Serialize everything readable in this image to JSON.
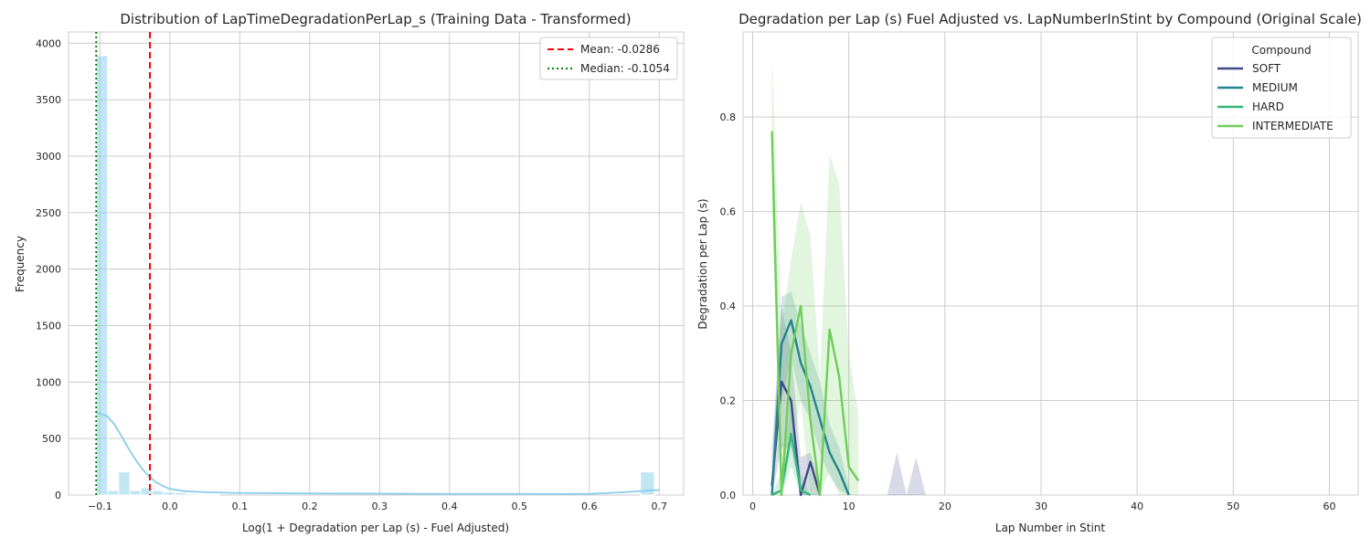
{
  "chart_data": [
    {
      "type": "bar",
      "title": "Distribution of LapTimeDegradationPerLap_s (Training Data - Transformed)",
      "xlabel": "Log(1 + Degradation per Lap (s) - Fuel Adjusted)",
      "ylabel": "Frequency",
      "xlim": [
        -0.145,
        0.735
      ],
      "ylim": [
        0,
        4100
      ],
      "xticks": [
        -0.1,
        0.0,
        0.1,
        0.2,
        0.3,
        0.4,
        0.5,
        0.6,
        0.7
      ],
      "xtick_labels": [
        "−0.1",
        "0.0",
        "0.1",
        "0.2",
        "0.3",
        "0.4",
        "0.5",
        "0.6",
        "0.7"
      ],
      "yticks": [
        0,
        500,
        1000,
        1500,
        2000,
        2500,
        3000,
        3500,
        4000
      ],
      "ytick_labels": [
        "0",
        "500",
        "1000",
        "1500",
        "2000",
        "2500",
        "3000",
        "3500",
        "4000"
      ],
      "grid": true,
      "legend_position": "top-right",
      "bar_color": "#87ceeb",
      "bins": [
        {
          "x0": -0.1054,
          "x1": -0.0894,
          "count": 3890
        },
        {
          "x0": -0.0894,
          "x1": -0.0734,
          "count": 40
        },
        {
          "x0": -0.0734,
          "x1": -0.0574,
          "count": 205
        },
        {
          "x0": -0.0574,
          "x1": -0.0414,
          "count": 40
        },
        {
          "x0": -0.0414,
          "x1": -0.0254,
          "count": 65
        },
        {
          "x0": -0.0254,
          "x1": -0.0094,
          "count": 40
        },
        {
          "x0": -0.0094,
          "x1": 0.0066,
          "count": 25
        },
        {
          "x0": 0.0066,
          "x1": 0.0226,
          "count": 22
        },
        {
          "x0": 0.0226,
          "x1": 0.0386,
          "count": 12
        },
        {
          "x0": 0.0386,
          "x1": 0.0546,
          "count": 8
        },
        {
          "x0": 0.0546,
          "x1": 0.0706,
          "count": 6
        },
        {
          "x0": 0.6731,
          "x1": 0.6931,
          "count": 205
        }
      ],
      "kde": {
        "color": "#87ceeb",
        "x": [
          -0.1054,
          -0.09,
          -0.08,
          -0.07,
          -0.06,
          -0.05,
          -0.04,
          -0.03,
          -0.02,
          -0.01,
          0.0,
          0.02,
          0.05,
          0.1,
          0.2,
          0.3,
          0.4,
          0.5,
          0.55,
          0.6,
          0.65,
          0.7
        ],
        "y": [
          730,
          700,
          630,
          530,
          420,
          320,
          235,
          165,
          115,
          80,
          55,
          35,
          25,
          18,
          14,
          12,
          10,
          10,
          9,
          10,
          25,
          45
        ]
      },
      "reference_lines": [
        {
          "label": "Mean: -0.0286",
          "value": -0.0286,
          "color": "#ff0000",
          "style": "dashed"
        },
        {
          "label": "Median: -0.1054",
          "value": -0.1054,
          "color": "#008000",
          "style": "dotted"
        }
      ]
    },
    {
      "type": "line",
      "title": "Degradation per Lap (s) Fuel Adjusted vs. LapNumberInStint by Compound (Original Scale)",
      "xlabel": "Lap Number in Stint",
      "ylabel": "Degradation per Lap (s)",
      "xlim": [
        -1,
        63
      ],
      "ylim": [
        0,
        0.98
      ],
      "xticks": [
        0,
        10,
        20,
        30,
        40,
        50,
        60
      ],
      "xtick_labels": [
        "0",
        "10",
        "20",
        "30",
        "40",
        "50",
        "60"
      ],
      "yticks": [
        0.0,
        0.2,
        0.4,
        0.6,
        0.8
      ],
      "ytick_labels": [
        "0.0",
        "0.2",
        "0.4",
        "0.6",
        "0.8"
      ],
      "grid": true,
      "legend_title": "Compound",
      "legend_position": "top-right",
      "series": [
        {
          "name": "SOFT",
          "color": "#3e4a89",
          "x": [
            2,
            3,
            4,
            5,
            6,
            7
          ],
          "y": [
            0.02,
            0.24,
            0.2,
            0.0,
            0.07,
            0.0
          ],
          "ci_upper": [
            0.1,
            0.4,
            0.3,
            0.08,
            0.09,
            0.02
          ],
          "ci_lower": [
            0.0,
            0.1,
            0.1,
            0.0,
            0.0,
            0.0
          ]
        },
        {
          "name": "MEDIUM",
          "color": "#26828e",
          "x": [
            2,
            3,
            4,
            5,
            6,
            7,
            8,
            9,
            10
          ],
          "y": [
            0.0,
            0.32,
            0.37,
            0.28,
            0.23,
            0.16,
            0.09,
            0.05,
            0.0
          ],
          "ci_upper": [
            0.05,
            0.42,
            0.43,
            0.36,
            0.3,
            0.24,
            0.15,
            0.1,
            0.02
          ],
          "ci_lower": [
            0.0,
            0.2,
            0.29,
            0.2,
            0.16,
            0.09,
            0.04,
            0.01,
            0.0
          ]
        },
        {
          "name": "HARD",
          "color": "#35b779",
          "x": [
            2,
            3,
            4,
            5,
            6
          ],
          "y": [
            0.0,
            0.01,
            0.13,
            0.01,
            0.0
          ],
          "ci_upper": [
            0.0,
            0.05,
            0.2,
            0.05,
            0.0
          ],
          "ci_lower": [
            0.0,
            0.0,
            0.06,
            0.0,
            0.0
          ]
        },
        {
          "name": "INTERMEDIATE",
          "color": "#6ece58",
          "x": [
            2,
            3,
            4,
            5,
            6,
            7,
            8,
            9,
            10,
            11
          ],
          "y": [
            0.77,
            0.0,
            0.3,
            0.4,
            0.16,
            0.0,
            0.35,
            0.25,
            0.06,
            0.03
          ],
          "ci_upper": [
            0.93,
            0.35,
            0.5,
            0.62,
            0.55,
            0.25,
            0.72,
            0.66,
            0.3,
            0.17
          ],
          "ci_lower": [
            0.6,
            0.0,
            0.1,
            0.2,
            0.0,
            0.0,
            0.05,
            0.0,
            0.0,
            0.0
          ]
        }
      ],
      "extra_bands": [
        {
          "series": "SOFT",
          "x": [
            14,
            15,
            16
          ],
          "ci_upper": [
            0.0,
            0.09,
            0.0
          ],
          "ci_lower": [
            0,
            0,
            0
          ]
        },
        {
          "series": "SOFT",
          "x": [
            16,
            17,
            18
          ],
          "ci_upper": [
            0.0,
            0.08,
            0.0
          ],
          "ci_lower": [
            0,
            0,
            0
          ]
        }
      ]
    }
  ]
}
